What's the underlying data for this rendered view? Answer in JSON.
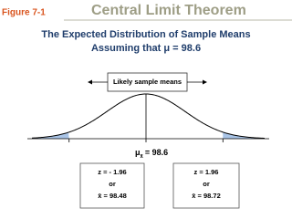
{
  "header": {
    "figure": "Figure 7-1",
    "title": "Central Limit Theorem"
  },
  "subtitle": {
    "line1": "The Expected Distribution of Sample Means",
    "line2": "Assuming that μ = 98.6"
  },
  "diagram": {
    "center_box": "Likely sample means",
    "mean_label": {
      "symbol": "μ",
      "subscript": "x̄",
      "text": "= 98.6"
    },
    "left_box": {
      "z": "z = - 1.96",
      "or": "or",
      "xbar": "x̄ = 98.48"
    },
    "right_box": {
      "z": "z =  1.96",
      "or": "or",
      "xbar": "x̄ = 98.72"
    }
  }
}
